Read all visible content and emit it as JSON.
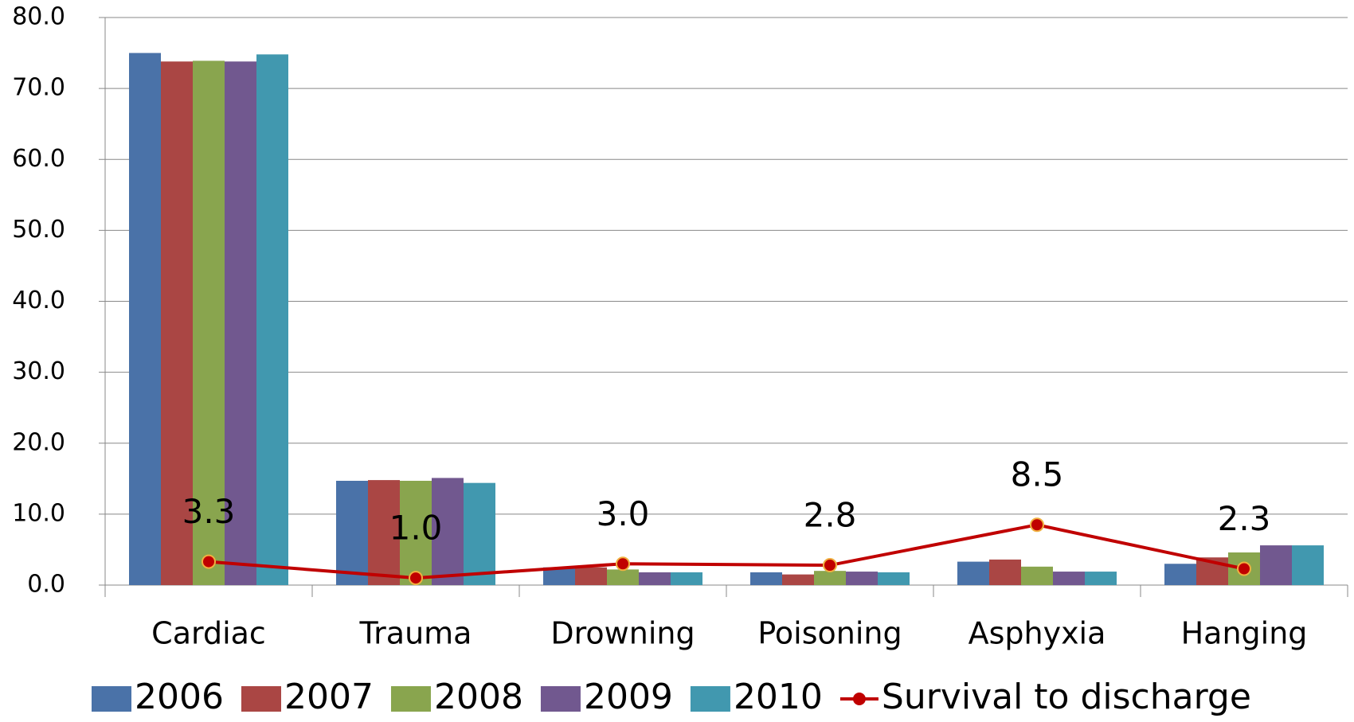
{
  "chart_data": {
    "type": "bar-line",
    "categories": [
      "Cardiac",
      "Trauma",
      "Drowning",
      "Poisoning",
      "Asphyxia",
      "Hanging"
    ],
    "series": [
      {
        "name": "2006",
        "color": "#4a72a8",
        "type": "bar",
        "values": [
          75.0,
          14.7,
          2.5,
          1.8,
          3.3,
          3.0
        ]
      },
      {
        "name": "2007",
        "color": "#aa4644",
        "type": "bar",
        "values": [
          73.8,
          14.8,
          2.5,
          1.5,
          3.6,
          3.9
        ]
      },
      {
        "name": "2008",
        "color": "#89a54e",
        "type": "bar",
        "values": [
          73.9,
          14.7,
          2.2,
          2.0,
          2.6,
          4.6
        ]
      },
      {
        "name": "2009",
        "color": "#71588f",
        "type": "bar",
        "values": [
          73.8,
          15.1,
          1.8,
          1.9,
          1.9,
          5.6
        ]
      },
      {
        "name": "2010",
        "color": "#4198af",
        "type": "bar",
        "values": [
          74.8,
          14.4,
          1.8,
          1.8,
          1.9,
          5.6
        ]
      },
      {
        "name": "Survival to discharge",
        "color": "#c00000",
        "type": "line",
        "values": [
          3.3,
          1.0,
          3.0,
          2.8,
          8.5,
          2.3
        ],
        "value_labels": [
          "3.3",
          "1.0",
          "3.0",
          "2.8",
          "8.5",
          "2.3"
        ]
      }
    ],
    "ylim": [
      0,
      80
    ],
    "yticks": [
      {
        "value": 0,
        "label": "0.0"
      },
      {
        "value": 10,
        "label": "10.0"
      },
      {
        "value": 20,
        "label": "20.0"
      },
      {
        "value": 30,
        "label": "30.0"
      },
      {
        "value": 40,
        "label": "40.0"
      },
      {
        "value": 50,
        "label": "50.0"
      },
      {
        "value": 60,
        "label": "60.0"
      },
      {
        "value": 70,
        "label": "70.0"
      },
      {
        "value": 80,
        "label": "80.0"
      }
    ],
    "grid": true,
    "legend": "bottom"
  }
}
